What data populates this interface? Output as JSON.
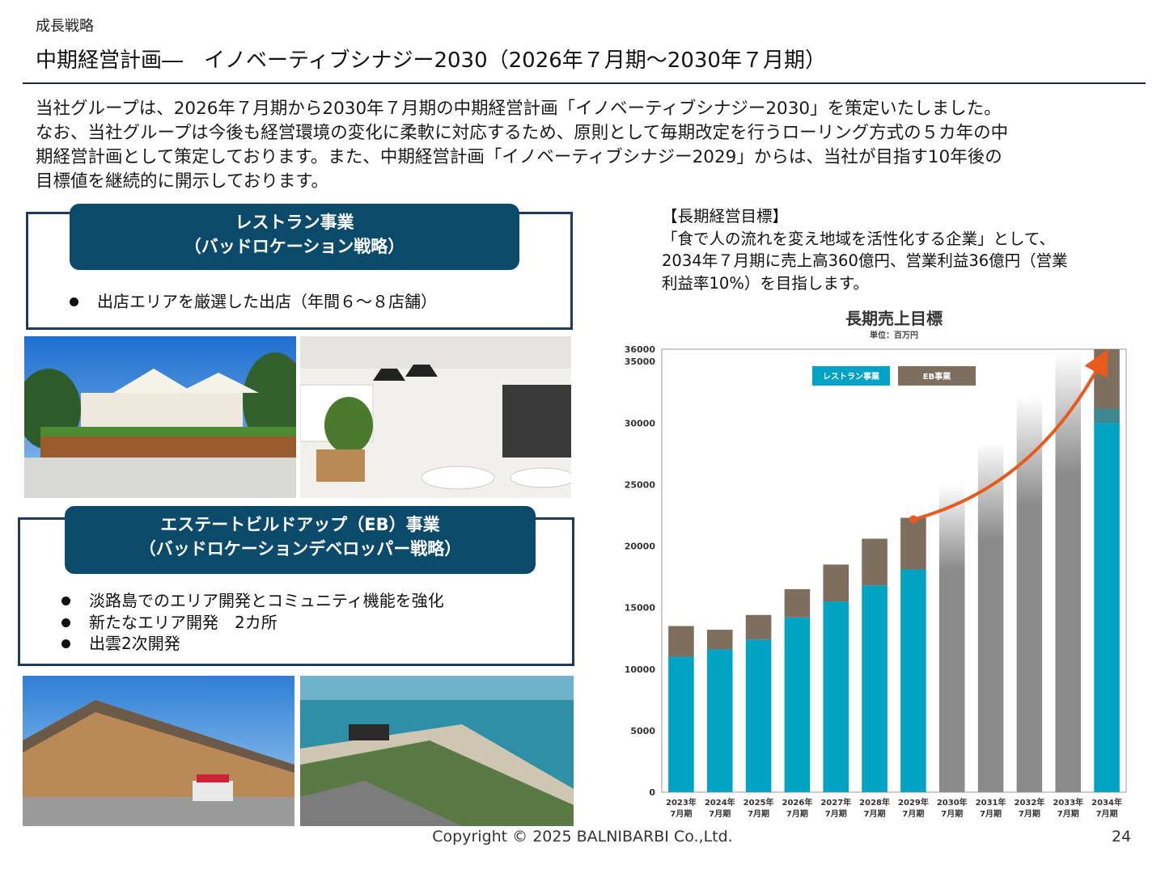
{
  "header": {
    "section": "成長戦略",
    "title": "中期経営計画―　イノベーティブシナジー2030（2026年７月期～2030年７月期）"
  },
  "intro": [
    "当社グループは、2026年７月期から2030年７月期の中期経営計画「イノベーティブシナジー2030」を策定いたしました。",
    "なお、当社グループは今後も経営環境の変化に柔軟に対応するため、原則として毎期改定を行うローリング方式の５カ年の中",
    "期経営計画として策定しております。また、中期経営計画「イノベーティブシナジー2029」からは、当社が目指す10年後の",
    "目標値を継続的に開示しております。"
  ],
  "restaurant": {
    "heading_line1": "レストラン事業",
    "heading_line2": "（バッドロケーション戦略）",
    "bullets": [
      "出店エリアを厳選した出店（年間６～８店舗）"
    ]
  },
  "eb": {
    "heading_line1": "エステートビルドアップ（EB）事業",
    "heading_line2": "（バッドロケーションデベロッパー戦略）",
    "bullets": [
      "淡路島でのエリア開発とコミュニティ機能を強化",
      "新たなエリア開発　2カ所",
      "出雲2次開発"
    ]
  },
  "goal": {
    "label": "【長期経営目標】",
    "lines": [
      "「食で人の流れを変え地域を活性化する企業」として、",
      "2034年７月期に売上高360億円、営業利益36億円（営業",
      "利益率10%）を目指します。"
    ]
  },
  "chart_data": {
    "type": "bar",
    "title": "長期売上目標",
    "unit": "単位：百万円",
    "ylim": [
      0,
      36000
    ],
    "yticks": [
      0,
      5000,
      10000,
      15000,
      20000,
      25000,
      30000,
      35000,
      36000
    ],
    "categories": [
      [
        "2023年",
        "7月期"
      ],
      [
        "2024年",
        "7月期"
      ],
      [
        "2025年",
        "7月期"
      ],
      [
        "2026年",
        "7月期"
      ],
      [
        "2027年",
        "7月期"
      ],
      [
        "2028年",
        "7月期"
      ],
      [
        "2029年",
        "7月期"
      ],
      [
        "2030年",
        "7月期"
      ],
      [
        "2031年",
        "7月期"
      ],
      [
        "2032年",
        "7月期"
      ],
      [
        "2033年",
        "7月期"
      ],
      [
        "2034年",
        "7月期"
      ]
    ],
    "series": [
      {
        "name": "レストラン事業",
        "color": "#00a3c4",
        "values": [
          11000,
          11600,
          12400,
          14200,
          15500,
          16800,
          18100,
          null,
          null,
          null,
          null,
          30000
        ]
      },
      {
        "name": "EB事業",
        "color": "#7d6e5e",
        "values": [
          2500,
          1600,
          2000,
          2300,
          3000,
          3800,
          4200,
          null,
          null,
          null,
          null,
          6000
        ]
      }
    ],
    "projection": {
      "color": "#8a8a8a",
      "values": [
        null,
        null,
        null,
        null,
        null,
        null,
        null,
        25000,
        28500,
        32200,
        35800,
        null
      ]
    },
    "arrow_color": "#e85a1e",
    "legend_position": "top-left"
  },
  "footer": {
    "copyright": "Copyright © 2025 BALNIBARBI Co.,Ltd.",
    "page": "24"
  }
}
